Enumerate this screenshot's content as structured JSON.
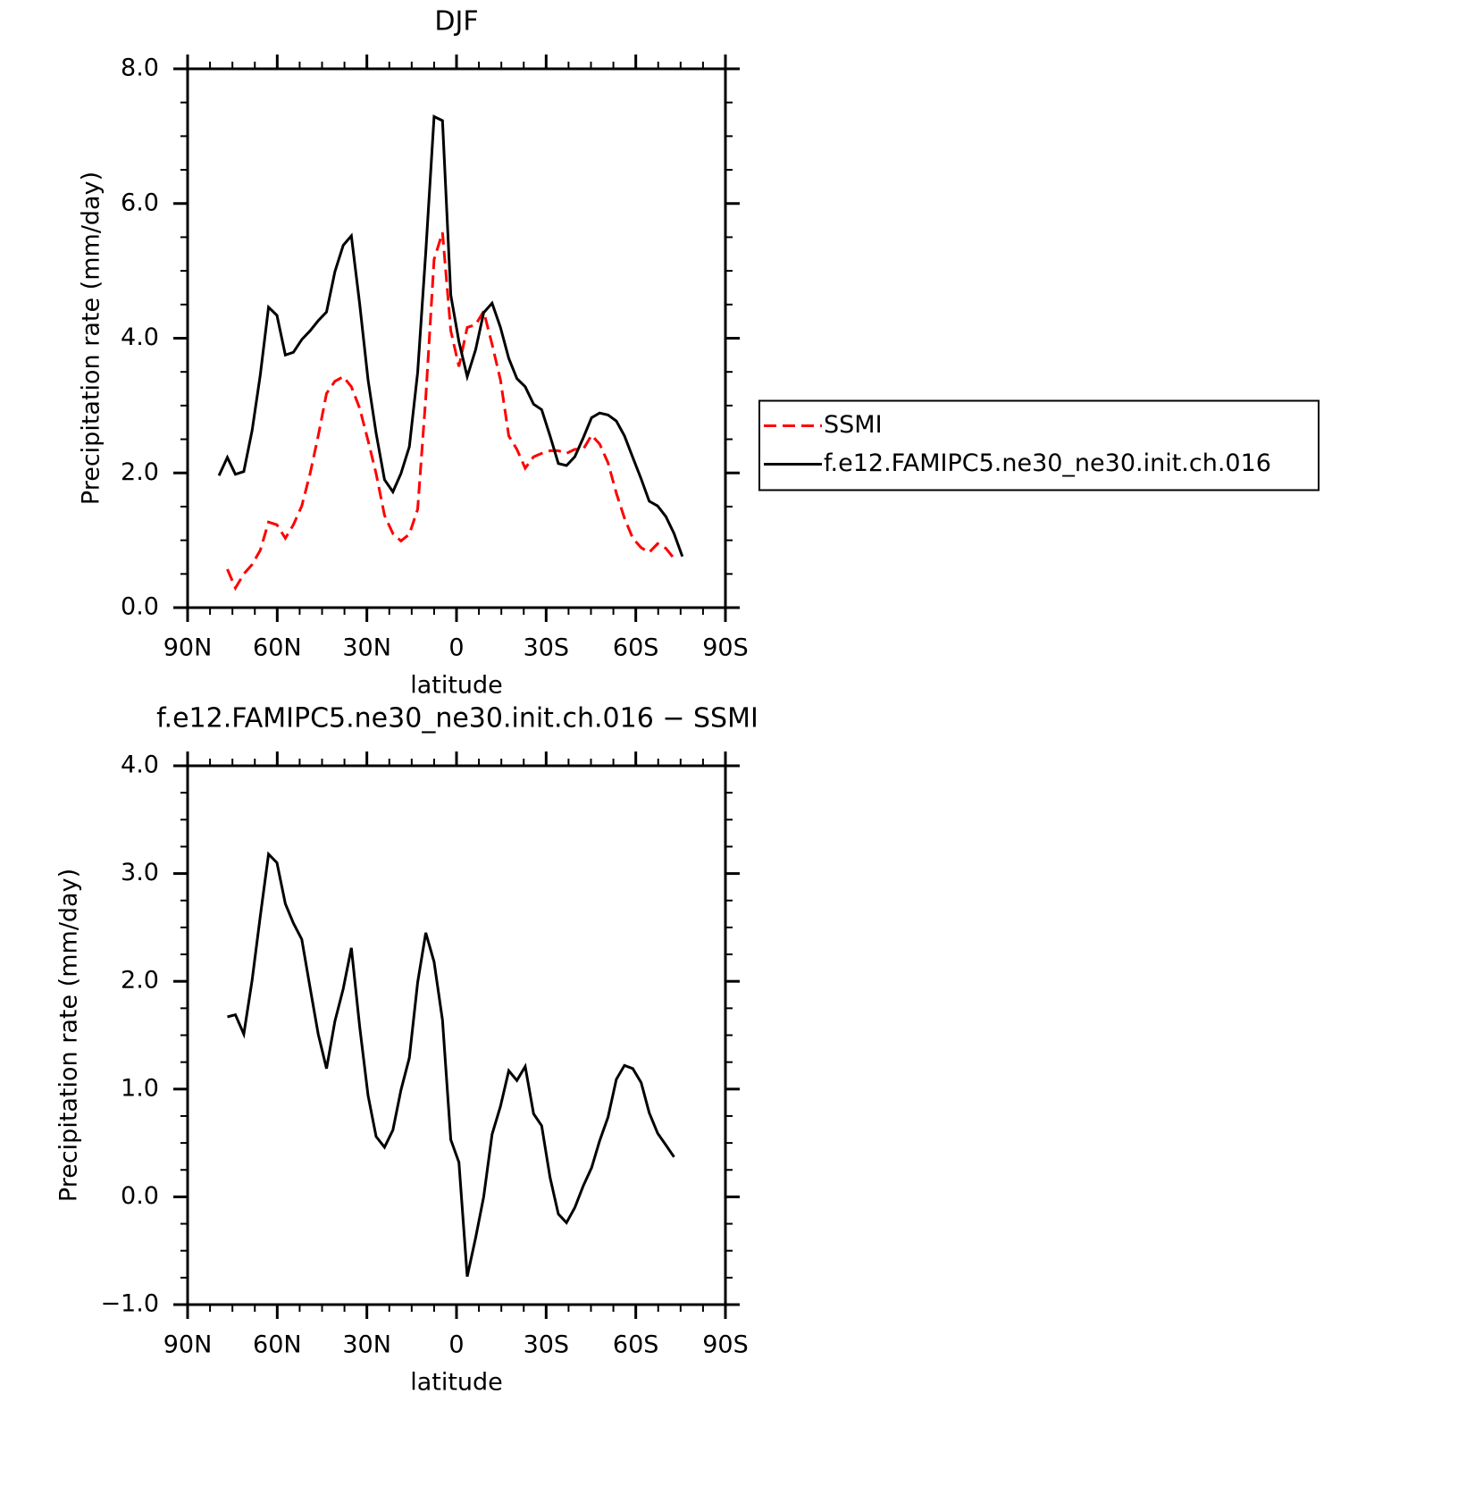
{
  "chart_data": [
    {
      "type": "line",
      "title": "DJF",
      "xlabel": "latitude",
      "ylabel": "Precipitation rate (mm/day)",
      "x": [
        79.5,
        76.7,
        74.0,
        71.2,
        68.4,
        65.7,
        62.9,
        60.1,
        57.3,
        54.6,
        51.8,
        49.0,
        46.3,
        43.5,
        40.7,
        37.9,
        35.2,
        32.4,
        29.6,
        26.9,
        24.1,
        21.3,
        18.6,
        15.8,
        13.0,
        10.3,
        7.5,
        4.7,
        1.9,
        -0.8,
        -3.6,
        -6.4,
        -9.1,
        -11.9,
        -14.7,
        -17.5,
        -20.2,
        -23.0,
        -25.8,
        -28.5,
        -31.3,
        -34.1,
        -36.8,
        -39.6,
        -42.4,
        -45.2,
        -47.9,
        -50.7,
        -53.5,
        -56.2,
        -59.0,
        -61.8,
        -64.5,
        -67.3,
        -70.1,
        -72.8,
        -75.6
      ],
      "xlim": [
        90,
        -90
      ],
      "xticks": [
        {
          "value": 90,
          "label": "90N"
        },
        {
          "value": 60,
          "label": "60N"
        },
        {
          "value": 30,
          "label": "30N"
        },
        0,
        {
          "value": -30,
          "label": "30S"
        },
        {
          "value": -60,
          "label": "60S"
        },
        {
          "value": -90,
          "label": "90S"
        }
      ],
      "ylim": [
        0,
        8
      ],
      "yticks": [
        {
          "value": 0,
          "label": "0.0"
        },
        {
          "value": 2,
          "label": "2.0"
        },
        {
          "value": 4,
          "label": "4.0"
        },
        {
          "value": 6,
          "label": "6.0"
        },
        {
          "value": 8,
          "label": "8.0"
        }
      ],
      "legend": "right",
      "series": [
        {
          "name": "SSMI",
          "color": "#ff0000",
          "line_style": "dashed",
          "values": [
            null,
            0.57,
            0.29,
            0.5,
            0.64,
            0.85,
            1.27,
            1.23,
            1.03,
            1.23,
            1.51,
            1.99,
            2.55,
            3.18,
            3.36,
            3.43,
            3.28,
            2.96,
            2.48,
            1.99,
            1.37,
            1.1,
            0.99,
            1.09,
            1.46,
            3.12,
            5.17,
            5.57,
            4.11,
            3.58,
            4.16,
            4.2,
            4.4,
            3.91,
            3.38,
            2.55,
            2.35,
            2.07,
            2.24,
            2.29,
            2.33,
            2.33,
            2.29,
            2.35,
            2.35,
            2.56,
            2.43,
            2.15,
            1.7,
            1.33,
            1.03,
            0.89,
            0.82,
            0.95,
            0.88,
            0.73,
            null
          ]
        },
        {
          "name": "f.e12.FAMIPC5.ne30_ne30.init.ch.016",
          "color": "#000000",
          "line_style": "solid",
          "values": [
            1.96,
            2.23,
            1.98,
            2.02,
            2.63,
            3.45,
            4.46,
            4.34,
            3.75,
            3.79,
            3.98,
            4.11,
            4.26,
            4.39,
            4.99,
            5.38,
            5.52,
            4.51,
            3.38,
            2.59,
            1.9,
            1.72,
            1.99,
            2.39,
            3.49,
            5.28,
            7.29,
            7.23,
            4.64,
            3.95,
            3.43,
            3.83,
            4.38,
            4.52,
            4.16,
            3.7,
            3.4,
            3.28,
            3.02,
            2.94,
            2.55,
            2.14,
            2.11,
            2.24,
            2.52,
            2.82,
            2.89,
            2.86,
            2.77,
            2.55,
            2.23,
            1.91,
            1.58,
            1.51,
            1.35,
            1.1,
            0.76
          ]
        }
      ]
    },
    {
      "type": "line",
      "title": "f.e12.FAMIPC5.ne30_ne30.init.ch.016 − SSMI",
      "xlabel": "latitude",
      "ylabel": "Precipitation rate (mm/day)",
      "x": [
        76.7,
        74.0,
        71.2,
        68.4,
        65.7,
        62.9,
        60.1,
        57.3,
        54.6,
        51.8,
        49.0,
        46.3,
        43.5,
        40.7,
        37.9,
        35.2,
        32.4,
        29.6,
        26.9,
        24.1,
        21.3,
        18.6,
        15.8,
        13.0,
        10.3,
        7.5,
        4.7,
        1.9,
        -0.8,
        -3.6,
        -6.4,
        -9.1,
        -11.9,
        -14.7,
        -17.5,
        -20.2,
        -23.0,
        -25.8,
        -28.5,
        -31.3,
        -34.1,
        -36.8,
        -39.6,
        -42.4,
        -45.2,
        -47.9,
        -50.7,
        -53.5,
        -56.2,
        -59.0,
        -61.8,
        -64.5,
        -67.3,
        -70.1,
        -72.8
      ],
      "xlim": [
        90,
        -90
      ],
      "xticks": [
        {
          "value": 90,
          "label": "90N"
        },
        {
          "value": 60,
          "label": "60N"
        },
        {
          "value": 30,
          "label": "30N"
        },
        0,
        {
          "value": -30,
          "label": "30S"
        },
        {
          "value": -60,
          "label": "60S"
        },
        {
          "value": -90,
          "label": "90S"
        }
      ],
      "ylim": [
        -1,
        4
      ],
      "yticks": [
        {
          "value": -1,
          "label": "−1.0"
        },
        {
          "value": 0,
          "label": "0.0"
        },
        {
          "value": 1,
          "label": "1.0"
        },
        {
          "value": 2,
          "label": "2.0"
        },
        {
          "value": 3,
          "label": "3.0"
        },
        {
          "value": 4,
          "label": "4.0"
        }
      ],
      "series": [
        {
          "color": "#000000",
          "line_style": "solid",
          "values": [
            1.67,
            1.69,
            1.51,
            2.01,
            2.6,
            3.18,
            3.1,
            2.72,
            2.54,
            2.39,
            1.94,
            1.51,
            1.19,
            1.63,
            1.93,
            2.31,
            1.58,
            0.94,
            0.56,
            0.46,
            0.62,
            0.99,
            1.29,
            1.99,
            2.45,
            2.18,
            1.64,
            0.53,
            0.32,
            -0.74,
            -0.38,
            0.0,
            0.58,
            0.84,
            1.17,
            1.08,
            1.21,
            0.77,
            0.66,
            0.18,
            -0.16,
            -0.24,
            -0.1,
            0.1,
            0.27,
            0.52,
            0.74,
            1.09,
            1.22,
            1.19,
            1.06,
            0.78,
            0.59,
            0.48,
            0.37
          ]
        }
      ]
    }
  ]
}
